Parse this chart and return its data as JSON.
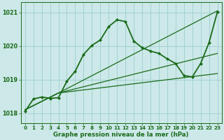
{
  "bg_color": "#cce8e8",
  "line_color": "#1a6b1a",
  "grid_color": "#9ecece",
  "xlabel": "Graphe pression niveau de la mer (hPa)",
  "xlim": [
    -0.5,
    23.5
  ],
  "ylim": [
    1017.7,
    1021.3
  ],
  "yticks": [
    1018,
    1019,
    1020,
    1021
  ],
  "xticks": [
    0,
    1,
    2,
    3,
    4,
    5,
    6,
    7,
    8,
    9,
    10,
    11,
    12,
    13,
    14,
    15,
    16,
    17,
    18,
    19,
    20,
    21,
    22,
    23
  ],
  "line_wave": {
    "x": [
      0,
      1,
      2,
      3,
      4,
      5,
      6,
      7,
      8,
      9,
      10,
      11,
      12,
      13,
      14,
      15,
      16,
      17,
      18,
      19,
      20,
      21,
      22,
      23
    ],
    "y": [
      1018.05,
      1018.42,
      1018.48,
      1018.44,
      1018.46,
      1018.95,
      1019.25,
      1019.75,
      1020.02,
      1020.18,
      1020.58,
      1020.78,
      1020.73,
      1020.15,
      1019.95,
      1019.85,
      1019.78,
      1019.62,
      1019.48,
      1019.12,
      1019.08,
      1019.48,
      1020.1,
      1021.02
    ]
  },
  "line_straight1": {
    "x": [
      0,
      4,
      23
    ],
    "y": [
      1018.1,
      1018.6,
      1019.18
    ]
  },
  "line_straight2": {
    "x": [
      0,
      4,
      23
    ],
    "y": [
      1018.1,
      1018.6,
      1019.78
    ]
  },
  "line_straight3": {
    "x": [
      0,
      4,
      23
    ],
    "y": [
      1018.1,
      1018.6,
      1021.05
    ]
  }
}
